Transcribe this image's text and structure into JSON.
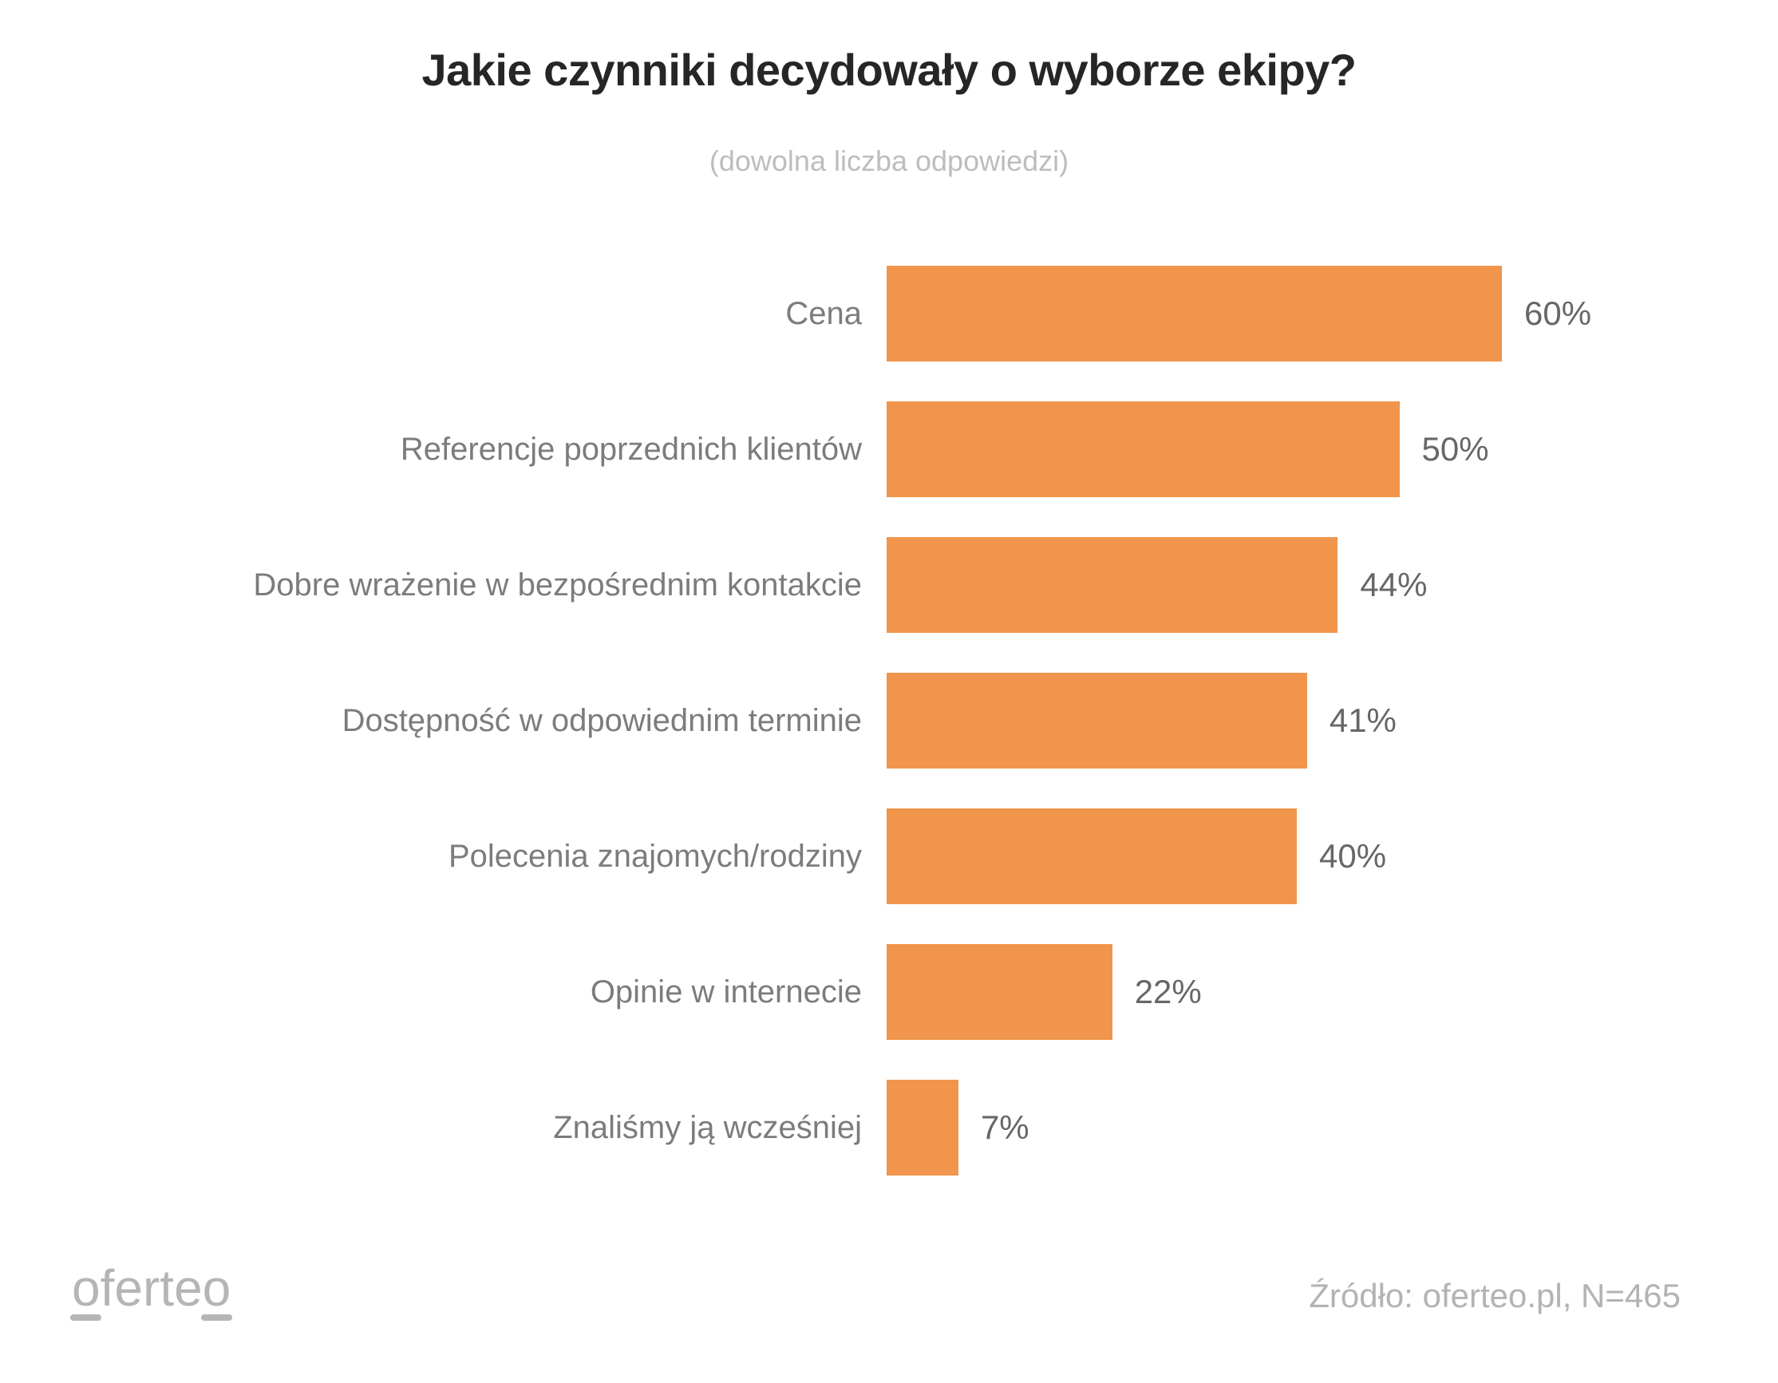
{
  "header": {
    "title": "Jakie czynniki decydowały o wyborze ekipy?",
    "subtitle": "(dowolna liczba odpowiedzi)"
  },
  "chart_data": {
    "type": "bar",
    "orientation": "horizontal",
    "title": "Jakie czynniki decydowały o wyborze ekipy?",
    "subtitle": "(dowolna liczba odpowiedzi)",
    "categories": [
      "Cena",
      "Referencje poprzednich klientów",
      "Dobre wrażenie w bezpośrednim kontakcie",
      "Dostępność w odpowiednim terminie",
      "Polecenia znajomych/rodziny",
      "Opinie w internecie",
      "Znaliśmy ją wcześniej"
    ],
    "values": [
      60,
      50,
      44,
      41,
      40,
      22,
      7
    ],
    "value_labels": [
      "60%",
      "50%",
      "44%",
      "41%",
      "40%",
      "22%",
      "7%"
    ],
    "value_suffix": "%",
    "xlim": [
      0,
      60
    ],
    "grid": "off",
    "legend": "none",
    "bar_color": "#F0954B",
    "label_color": "#7c7c7c",
    "value_color": "#676767"
  },
  "footer": {
    "logo_text": "oferteo",
    "source": "Źródło: oferteo.pl, N=465"
  }
}
